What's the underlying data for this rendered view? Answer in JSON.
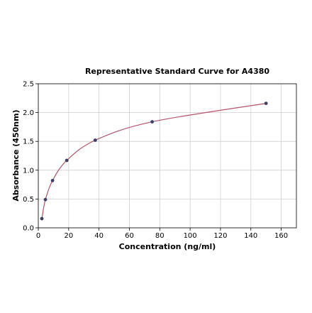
{
  "chart_data": {
    "type": "scatter",
    "title": "Representative Standard Curve for A4380",
    "xlabel": "Concentration (ng/ml)",
    "ylabel": "Absorbance (450nm)",
    "xlim": [
      0,
      170
    ],
    "ylim": [
      0,
      2.5
    ],
    "xticks": [
      0,
      20,
      40,
      60,
      80,
      100,
      120,
      140,
      160
    ],
    "yticks": [
      0.0,
      0.5,
      1.0,
      1.5,
      2.0,
      2.5
    ],
    "xtick_labels": [
      "0",
      "20",
      "40",
      "60",
      "80",
      "100",
      "120",
      "140",
      "160"
    ],
    "ytick_labels": [
      "0.0",
      "0.5",
      "1.0",
      "1.5",
      "2.0",
      "2.5"
    ],
    "grid": true,
    "series": [
      {
        "x": [
          2.34,
          4.69,
          9.38,
          18.75,
          37.5,
          75,
          150
        ],
        "y": [
          0.16,
          0.49,
          0.82,
          1.17,
          1.52,
          1.84,
          2.16
        ],
        "marker_color": "#3d3d6b",
        "line_color": "#b5546a",
        "fit": "smooth-curve"
      }
    ]
  }
}
